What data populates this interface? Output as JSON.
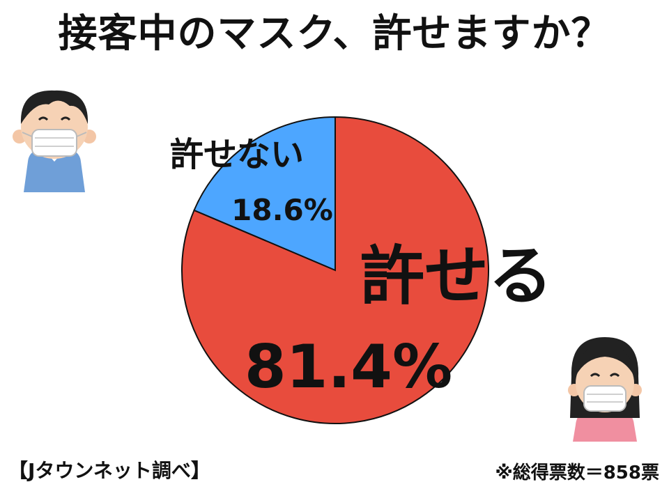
{
  "title": "接客中のマスクゝ許せますか？",
  "source": "【Jタウンネット調べ】",
  "note": "※総得票数＝858票",
  "colors": {
    "yes": "#e84c3d",
    "no": "#4da6ff",
    "outline": "#111111"
  },
  "illustrations": {
    "man": "masked-man-icon",
    "woman": "masked-woman-icon"
  },
  "chart_data": {
    "type": "pie",
    "title": "接客中のマスク、許せますか？",
    "slices": [
      {
        "label": "許せない",
        "value": 18.6,
        "value_label": "18.6%",
        "color": "#4da6ff"
      },
      {
        "label": "許せる",
        "value": 81.4,
        "value_label": "81.4%",
        "color": "#e84c3d"
      }
    ],
    "total_votes": 858
  }
}
